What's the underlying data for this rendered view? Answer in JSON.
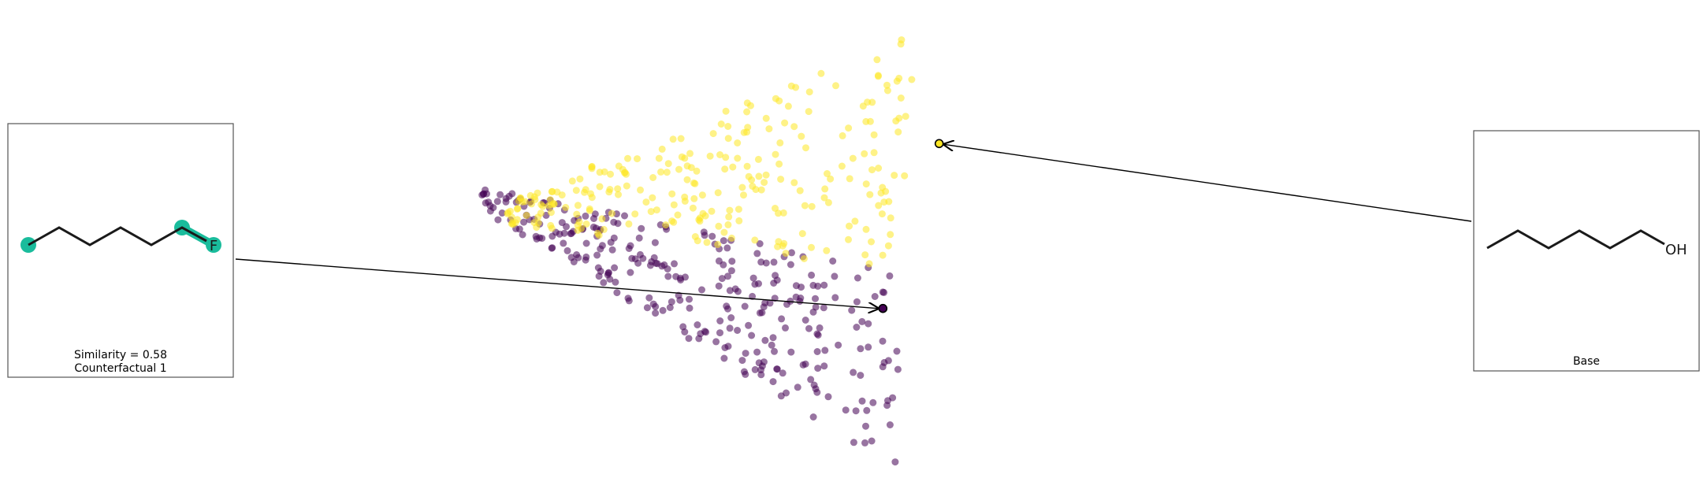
{
  "chart_data": {
    "type": "scatter",
    "title": "",
    "xlabel": "",
    "ylabel": "",
    "grid": false,
    "axes_visible": false,
    "colormap": "viridis",
    "class_colors": {
      "0": "#440154",
      "1": "#fde725"
    },
    "xlim": [
      0,
      1
    ],
    "ylim": [
      0,
      1
    ],
    "points": [],
    "highlighted": [
      {
        "name": "counterfactual-1",
        "x": 0.605,
        "y": 0.37,
        "class": 0
      },
      {
        "name": "base",
        "x": 0.688,
        "y": 0.725,
        "class": 1
      }
    ]
  },
  "panels": {
    "counterfactual": {
      "similarity_label": "Similarity = 0.58",
      "caption": "Counterfactual 1",
      "atom_label": "F",
      "highlight_color": "#1abc9c"
    },
    "base": {
      "caption": "Base",
      "atom_label": "OH"
    }
  }
}
